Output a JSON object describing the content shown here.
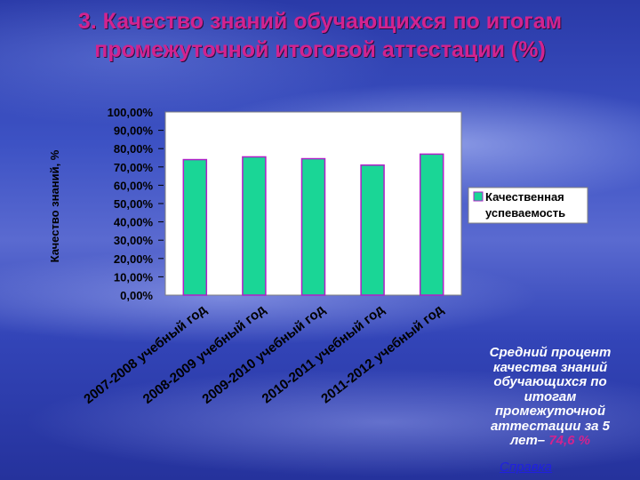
{
  "slide": {
    "title_line1": "3. Качество знаний обучающихся по итогам",
    "title_line2": "промежуточной итоговой аттестации (%)"
  },
  "chart_data": {
    "type": "bar",
    "title": "",
    "xlabel": "",
    "ylabel": "Качество знаний, %",
    "ylim": [
      0,
      100
    ],
    "yticks": [
      "100,00%",
      "90,00%",
      "80,00%",
      "70,00%",
      "60,00%",
      "50,00%",
      "40,00%",
      "30,00%",
      "20,00%",
      "10,00%",
      "0,00%"
    ],
    "categories": [
      "2007-2008 учебный год",
      "2008-2009 учебный год",
      "2009-2010 учебный год",
      "2010-2011 учебный год",
      "2011-2012 учебный год"
    ],
    "series": [
      {
        "name": "Качественная успеваемость",
        "values": [
          74,
          75.5,
          74.5,
          71,
          77
        ]
      }
    ],
    "grid": false,
    "legend": {
      "position": "right",
      "label_line1": "Качественная",
      "label_line2": "успеваемость"
    },
    "colors": {
      "bar_fill": "#1ad696",
      "bar_stroke": "#b020c8",
      "plot_bg": "#ffffff",
      "text": "#000000"
    }
  },
  "summary": {
    "text_lines": [
      "Средний процент",
      "качества знаний",
      "обучающихся по",
      "итогам",
      "промежуточной",
      "аттестации за 5"
    ],
    "last_line_prefix": "лет– ",
    "value": "74,6 %"
  },
  "reference_link": "Справка"
}
